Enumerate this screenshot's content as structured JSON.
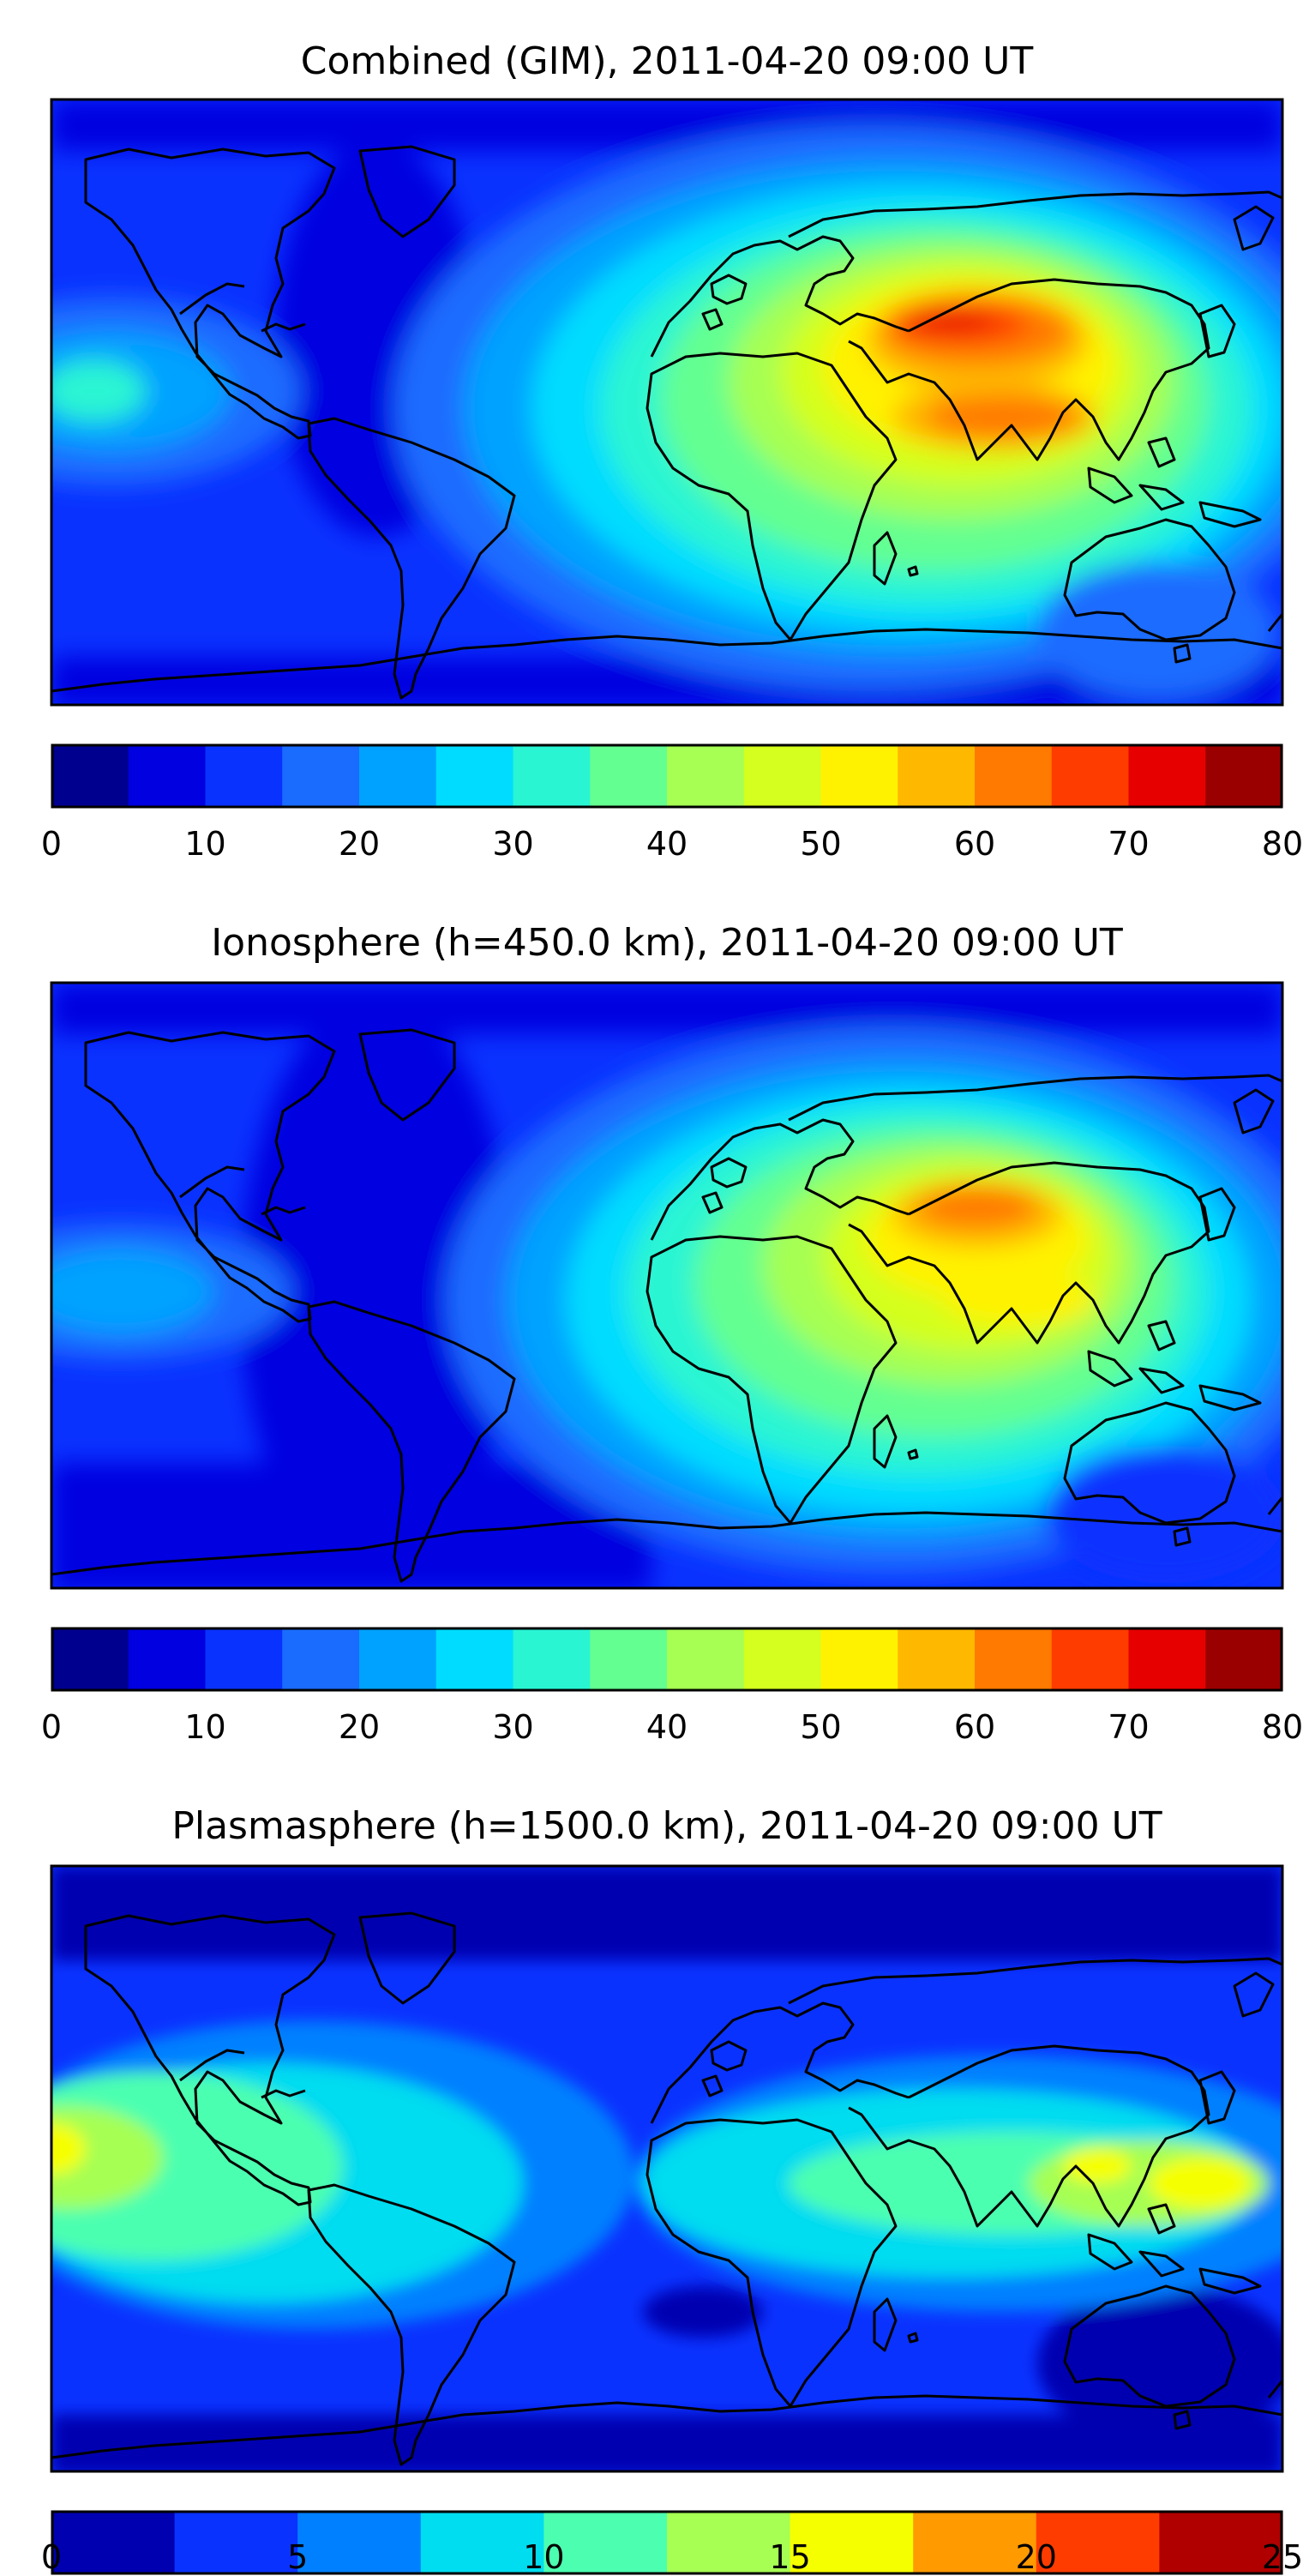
{
  "panels": [
    {
      "title": "Combined (GIM), 2011-04-20 09:00 UT",
      "colorbar": {
        "levels": [
          0,
          5,
          10,
          15,
          20,
          25,
          30,
          35,
          40,
          45,
          50,
          55,
          60,
          65,
          70,
          75,
          80
        ],
        "tick_labels": [
          "0",
          "10",
          "20",
          "30",
          "40",
          "50",
          "60",
          "70",
          "80"
        ],
        "colors": [
          "#00008f",
          "#0000e0",
          "#0a32ff",
          "#1a6cff",
          "#00a2ff",
          "#00dcff",
          "#29f5d3",
          "#63ff91",
          "#a6ff52",
          "#d4ff1f",
          "#fff200",
          "#ffb800",
          "#ff7a00",
          "#ff3c00",
          "#e60000",
          "#9b0000"
        ]
      }
    },
    {
      "title": "Ionosphere  (h=450.0 km), 2011-04-20 09:00 UT",
      "colorbar": {
        "levels": [
          0,
          5,
          10,
          15,
          20,
          25,
          30,
          35,
          40,
          45,
          50,
          55,
          60,
          65,
          70,
          75,
          80
        ],
        "tick_labels": [
          "0",
          "10",
          "20",
          "30",
          "40",
          "50",
          "60",
          "70",
          "80"
        ],
        "colors": [
          "#00008f",
          "#0000e0",
          "#0a32ff",
          "#1a6cff",
          "#00a2ff",
          "#00dcff",
          "#29f5d3",
          "#63ff91",
          "#a6ff52",
          "#d4ff1f",
          "#fff200",
          "#ffb800",
          "#ff7a00",
          "#ff3c00",
          "#e60000",
          "#9b0000"
        ]
      }
    },
    {
      "title": "Plasmasphere (h=1500.0 km), 2011-04-20 09:00 UT",
      "colorbar": {
        "levels": [
          0,
          2.5,
          5,
          7.5,
          10,
          12.5,
          15,
          17.5,
          20,
          22.5,
          25
        ],
        "tick_labels": [
          "0",
          "5",
          "10",
          "15",
          "20",
          "25"
        ],
        "colors": [
          "#0000b0",
          "#0a32ff",
          "#0080ff",
          "#00dcf0",
          "#4cffb0",
          "#a6ff52",
          "#f6ff00",
          "#ff9a00",
          "#ff3c00",
          "#b00000"
        ]
      }
    }
  ]
}
